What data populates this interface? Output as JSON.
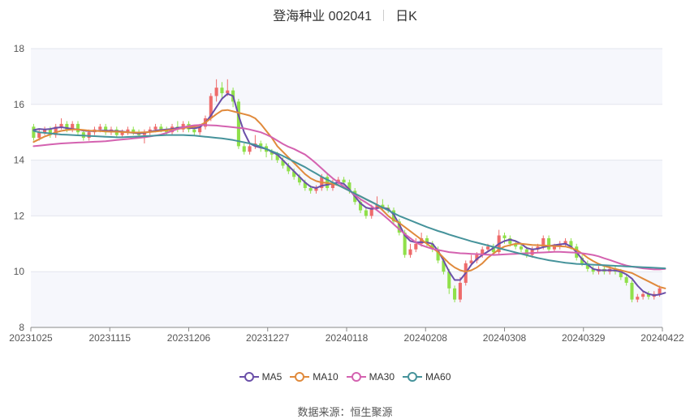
{
  "chart_title": {
    "name": "登海种业 002041",
    "period": "日K"
  },
  "source": {
    "label": "数据来源：",
    "value": "恒生聚源"
  },
  "chart_data": {
    "type": "candlestick",
    "ylim": [
      8,
      18
    ],
    "y_ticks": [
      "8",
      "10",
      "12",
      "14",
      "16",
      "18"
    ],
    "x_range": [
      "20231025",
      "20240422"
    ],
    "x_ticks": [
      "20231025",
      "20231115",
      "20231206",
      "20231227",
      "20240118",
      "20240208",
      "20240308",
      "20240329",
      "20240422"
    ],
    "grid": "horizontal",
    "legend_position": "bottom-center",
    "up_color": "#ee6b6b",
    "down_color": "#8fe04a",
    "candles": [
      [
        15.2,
        14.8,
        15.3,
        14.7
      ],
      [
        14.8,
        15.0,
        15.1,
        14.7
      ],
      [
        15.0,
        15.1,
        15.2,
        14.9
      ],
      [
        15.1,
        14.9,
        15.2,
        14.8
      ],
      [
        14.9,
        15.2,
        15.3,
        14.8
      ],
      [
        15.2,
        15.3,
        15.5,
        15.1
      ],
      [
        15.3,
        15.1,
        15.4,
        15.0
      ],
      [
        15.1,
        15.3,
        15.4,
        15.0
      ],
      [
        15.3,
        15.0,
        15.4,
        14.9
      ],
      [
        15.0,
        14.8,
        15.1,
        14.7
      ],
      [
        14.8,
        15.0,
        15.1,
        14.7
      ],
      [
        15.0,
        15.1,
        15.2,
        14.9
      ],
      [
        15.1,
        15.2,
        15.3,
        15.0
      ],
      [
        15.2,
        15.0,
        15.3,
        14.9
      ],
      [
        15.0,
        15.1,
        15.2,
        14.9
      ],
      [
        15.1,
        14.9,
        15.2,
        14.8
      ],
      [
        14.9,
        15.0,
        15.1,
        14.8
      ],
      [
        15.0,
        15.1,
        15.2,
        14.9
      ],
      [
        15.1,
        15.0,
        15.2,
        14.9
      ],
      [
        15.0,
        14.9,
        15.1,
        14.8
      ],
      [
        14.9,
        15.0,
        15.1,
        14.6
      ],
      [
        15.0,
        15.1,
        15.2,
        14.9
      ],
      [
        15.1,
        15.2,
        15.3,
        15.0
      ],
      [
        15.2,
        15.1,
        15.3,
        15.0
      ],
      [
        15.1,
        15.0,
        15.2,
        14.9
      ],
      [
        15.0,
        15.2,
        15.3,
        14.9
      ],
      [
        15.2,
        15.1,
        15.4,
        15.0
      ],
      [
        15.1,
        15.3,
        15.4,
        15.0
      ],
      [
        15.3,
        15.1,
        15.4,
        15.0
      ],
      [
        15.1,
        15.0,
        15.2,
        14.9
      ],
      [
        15.0,
        15.2,
        15.3,
        14.9
      ],
      [
        15.2,
        15.5,
        15.6,
        15.1
      ],
      [
        15.5,
        16.3,
        16.4,
        15.4
      ],
      [
        16.3,
        16.6,
        16.9,
        16.1
      ],
      [
        16.6,
        16.4,
        16.8,
        16.2
      ],
      [
        16.4,
        16.5,
        16.9,
        16.3
      ],
      [
        16.5,
        16.1,
        16.6,
        15.9
      ],
      [
        16.1,
        14.5,
        16.2,
        14.4
      ],
      [
        14.5,
        14.3,
        14.6,
        14.2
      ],
      [
        14.3,
        14.5,
        14.6,
        14.2
      ],
      [
        14.5,
        14.6,
        14.9,
        14.4
      ],
      [
        14.6,
        14.5,
        14.7,
        14.3
      ],
      [
        14.5,
        14.3,
        14.6,
        14.1
      ],
      [
        14.3,
        14.2,
        14.4,
        14.0
      ],
      [
        14.2,
        14.0,
        14.3,
        13.9
      ],
      [
        14.0,
        13.8,
        14.1,
        13.7
      ],
      [
        13.8,
        13.6,
        13.9,
        13.5
      ],
      [
        13.6,
        13.4,
        13.7,
        13.3
      ],
      [
        13.4,
        13.2,
        13.5,
        13.1
      ],
      [
        13.2,
        13.0,
        13.3,
        12.9
      ],
      [
        13.0,
        12.9,
        13.1,
        12.8
      ],
      [
        12.9,
        13.0,
        13.1,
        12.8
      ],
      [
        13.0,
        13.4,
        13.5,
        12.9
      ],
      [
        13.4,
        13.0,
        13.5,
        12.9
      ],
      [
        13.0,
        13.2,
        13.3,
        12.9
      ],
      [
        13.2,
        13.3,
        13.4,
        13.1
      ],
      [
        13.3,
        13.2,
        13.4,
        13.1
      ],
      [
        13.2,
        12.9,
        13.3,
        12.8
      ],
      [
        12.9,
        12.5,
        13.0,
        12.4
      ],
      [
        12.5,
        12.2,
        12.6,
        12.1
      ],
      [
        12.2,
        12.0,
        12.3,
        11.9
      ],
      [
        12.0,
        12.3,
        12.4,
        11.9
      ],
      [
        12.3,
        12.4,
        12.7,
        12.2
      ],
      [
        12.4,
        12.3,
        12.6,
        12.2
      ],
      [
        12.3,
        12.2,
        12.4,
        12.1
      ],
      [
        12.2,
        11.8,
        12.3,
        11.7
      ],
      [
        11.8,
        11.4,
        11.9,
        11.3
      ],
      [
        11.4,
        10.6,
        11.5,
        10.5
      ],
      [
        10.6,
        10.8,
        11.0,
        10.5
      ],
      [
        10.8,
        11.0,
        11.2,
        10.7
      ],
      [
        11.0,
        11.2,
        11.4,
        10.9
      ],
      [
        11.2,
        11.0,
        11.3,
        10.9
      ],
      [
        11.0,
        10.8,
        11.1,
        10.7
      ],
      [
        10.8,
        10.4,
        10.9,
        10.3
      ],
      [
        10.4,
        10.0,
        10.5,
        9.9
      ],
      [
        10.0,
        9.4,
        10.1,
        9.2
      ],
      [
        9.4,
        9.0,
        9.5,
        8.9
      ],
      [
        9.0,
        9.6,
        9.8,
        8.9
      ],
      [
        9.6,
        10.3,
        10.4,
        9.5
      ],
      [
        10.3,
        10.4,
        10.6,
        10.2
      ],
      [
        10.4,
        10.6,
        10.7,
        10.3
      ],
      [
        10.6,
        10.8,
        10.9,
        10.5
      ],
      [
        10.8,
        10.9,
        11.0,
        10.7
      ],
      [
        10.9,
        10.7,
        11.0,
        10.6
      ],
      [
        10.7,
        11.3,
        11.5,
        10.6
      ],
      [
        11.3,
        11.2,
        11.4,
        11.0
      ],
      [
        11.2,
        11.0,
        11.3,
        10.9
      ],
      [
        11.0,
        10.9,
        11.1,
        10.8
      ],
      [
        10.9,
        10.8,
        11.0,
        10.7
      ],
      [
        10.8,
        10.6,
        10.9,
        10.5
      ],
      [
        10.6,
        10.8,
        10.9,
        10.5
      ],
      [
        10.8,
        10.9,
        11.0,
        10.7
      ],
      [
        10.9,
        11.2,
        11.3,
        10.8
      ],
      [
        11.2,
        10.8,
        11.3,
        10.7
      ],
      [
        10.8,
        10.9,
        11.0,
        10.7
      ],
      [
        10.9,
        11.0,
        11.1,
        10.8
      ],
      [
        11.0,
        11.1,
        11.2,
        10.9
      ],
      [
        11.1,
        10.9,
        11.2,
        10.8
      ],
      [
        10.9,
        10.5,
        11.0,
        10.4
      ],
      [
        10.5,
        10.3,
        10.6,
        10.2
      ],
      [
        10.3,
        10.1,
        10.4,
        10.0
      ],
      [
        10.1,
        10.0,
        10.2,
        9.9
      ],
      [
        10.0,
        10.1,
        10.2,
        9.9
      ],
      [
        10.1,
        10.0,
        10.2,
        9.9
      ],
      [
        10.0,
        10.1,
        10.2,
        9.9
      ],
      [
        10.1,
        10.0,
        10.2,
        9.9
      ],
      [
        10.0,
        9.8,
        10.1,
        9.7
      ],
      [
        9.8,
        9.6,
        9.9,
        9.5
      ],
      [
        9.6,
        9.0,
        9.7,
        8.9
      ],
      [
        9.0,
        9.1,
        9.2,
        8.9
      ],
      [
        9.1,
        9.2,
        9.3,
        9.0
      ],
      [
        9.2,
        9.1,
        9.3,
        9.0
      ],
      [
        9.1,
        9.2,
        9.3,
        9.0
      ],
      [
        9.2,
        9.4,
        9.5,
        9.1
      ]
    ],
    "series": [
      {
        "name": "MA5",
        "color": "#6a4fa8",
        "values": [
          15.08,
          15.12,
          15.1,
          15.12,
          15.16,
          15.18,
          15.15,
          15.12,
          15.1,
          15.06,
          15.04,
          15.04,
          15.06,
          15.06,
          15.05,
          15.04,
          15.03,
          15.0,
          14.98,
          14.96,
          14.98,
          15.02,
          15.06,
          15.08,
          15.1,
          15.12,
          15.16,
          15.18,
          15.16,
          15.14,
          15.18,
          15.35,
          15.6,
          15.9,
          16.2,
          16.38,
          16.3,
          15.6,
          15.0,
          14.6,
          14.5,
          14.45,
          14.4,
          14.3,
          14.2,
          14.0,
          13.8,
          13.6,
          13.4,
          13.2,
          13.05,
          13.0,
          13.08,
          13.12,
          13.16,
          13.2,
          13.15,
          12.95,
          12.7,
          12.45,
          12.3,
          12.25,
          12.28,
          12.3,
          12.25,
          12.05,
          11.7,
          11.3,
          11.1,
          11.05,
          11.06,
          11.05,
          11.0,
          10.75,
          10.4,
          10.0,
          9.7,
          9.7,
          9.95,
          10.25,
          10.45,
          10.6,
          10.72,
          10.85,
          11.0,
          11.1,
          11.15,
          11.1,
          11.0,
          10.85,
          10.8,
          10.82,
          10.88,
          10.92,
          10.95,
          10.98,
          11.0,
          10.9,
          10.7,
          10.45,
          10.25,
          10.1,
          10.05,
          10.05,
          10.05,
          10.04,
          10.0,
          9.9,
          9.75,
          9.5,
          9.3,
          9.2,
          9.15,
          9.18,
          9.24
        ]
      },
      {
        "name": "MA10",
        "color": "#e08a3c",
        "values": [
          14.65,
          14.75,
          14.85,
          14.92,
          15.0,
          15.05,
          15.08,
          15.1,
          15.1,
          15.08,
          15.06,
          15.05,
          15.04,
          15.03,
          15.02,
          15.02,
          15.01,
          15.0,
          14.99,
          14.99,
          15.0,
          15.01,
          15.03,
          15.05,
          15.07,
          15.09,
          15.12,
          15.15,
          15.18,
          15.2,
          15.25,
          15.35,
          15.5,
          15.65,
          15.78,
          15.8,
          15.75,
          15.7,
          15.65,
          15.6,
          15.5,
          15.3,
          15.05,
          14.8,
          14.5,
          14.3,
          14.1,
          13.9,
          13.7,
          13.5,
          13.35,
          13.25,
          13.2,
          13.18,
          13.15,
          13.1,
          13.0,
          12.9,
          12.8,
          12.7,
          12.6,
          12.5,
          12.4,
          12.2,
          12.0,
          11.85,
          11.75,
          11.6,
          11.45,
          11.3,
          11.15,
          11.0,
          10.85,
          10.7,
          10.5,
          10.3,
          10.15,
          10.05,
          10.0,
          10.05,
          10.15,
          10.3,
          10.5,
          10.65,
          10.8,
          10.9,
          10.95,
          11.0,
          11.0,
          10.98,
          10.96,
          10.95,
          10.94,
          10.93,
          10.92,
          10.91,
          10.9,
          10.85,
          10.78,
          10.65,
          10.5,
          10.38,
          10.28,
          10.2,
          10.15,
          10.1,
          10.05,
          10.0,
          9.95,
          9.85,
          9.75,
          9.65,
          9.55,
          9.45,
          9.4
        ]
      },
      {
        "name": "MA30",
        "color": "#d462b0",
        "values": [
          14.5,
          14.52,
          14.54,
          14.56,
          14.58,
          14.6,
          14.61,
          14.62,
          14.63,
          14.64,
          14.65,
          14.66,
          14.67,
          14.68,
          14.7,
          14.72,
          14.74,
          14.76,
          14.78,
          14.8,
          14.82,
          14.85,
          14.88,
          14.92,
          14.98,
          15.05,
          15.12,
          15.18,
          15.22,
          15.25,
          15.26,
          15.26,
          15.25,
          15.24,
          15.22,
          15.2,
          15.18,
          15.16,
          15.14,
          15.1,
          15.05,
          15.0,
          14.92,
          14.82,
          14.7,
          14.58,
          14.48,
          14.4,
          14.3,
          14.2,
          14.05,
          13.88,
          13.7,
          13.52,
          13.35,
          13.2,
          13.05,
          12.9,
          12.75,
          12.6,
          12.48,
          12.35,
          12.2,
          12.05,
          11.88,
          11.7,
          11.52,
          11.35,
          11.2,
          11.05,
          10.95,
          10.88,
          10.82,
          10.78,
          10.74,
          10.7,
          10.68,
          10.66,
          10.65,
          10.64,
          10.63,
          10.62,
          10.61,
          10.6,
          10.61,
          10.62,
          10.63,
          10.64,
          10.65,
          10.66,
          10.67,
          10.68,
          10.69,
          10.7,
          10.71,
          10.71,
          10.7,
          10.69,
          10.68,
          10.66,
          10.63,
          10.6,
          10.55,
          10.48,
          10.42,
          10.35,
          10.28,
          10.22,
          10.18,
          10.15,
          10.12,
          10.1,
          10.08,
          10.08,
          10.1
        ]
      },
      {
        "name": "MA60",
        "color": "#46939b",
        "values": [
          15.05,
          15.0,
          14.98,
          14.96,
          14.94,
          14.92,
          14.91,
          14.9,
          14.89,
          14.88,
          14.87,
          14.86,
          14.85,
          14.84,
          14.83,
          14.82,
          14.82,
          14.83,
          14.84,
          14.85,
          14.86,
          14.87,
          14.88,
          14.89,
          14.9,
          14.9,
          14.9,
          14.9,
          14.89,
          14.88,
          14.86,
          14.84,
          14.82,
          14.8,
          14.78,
          14.75,
          14.72,
          14.68,
          14.64,
          14.6,
          14.55,
          14.48,
          14.4,
          14.32,
          14.24,
          14.15,
          14.05,
          13.95,
          13.85,
          13.75,
          13.63,
          13.52,
          13.4,
          13.3,
          13.2,
          13.1,
          13.0,
          12.9,
          12.8,
          12.7,
          12.6,
          12.5,
          12.4,
          12.3,
          12.2,
          12.1,
          12.0,
          11.92,
          11.84,
          11.76,
          11.68,
          11.6,
          11.53,
          11.46,
          11.4,
          11.33,
          11.27,
          11.21,
          11.15,
          11.09,
          11.04,
          10.99,
          10.94,
          10.89,
          10.84,
          10.79,
          10.74,
          10.69,
          10.64,
          10.59,
          10.54,
          10.49,
          10.45,
          10.41,
          10.38,
          10.35,
          10.32,
          10.3,
          10.28,
          10.27,
          10.26,
          10.25,
          10.24,
          10.23,
          10.22,
          10.21,
          10.2,
          10.19,
          10.18,
          10.17,
          10.16,
          10.15,
          10.14,
          10.13,
          10.12
        ]
      }
    ]
  }
}
